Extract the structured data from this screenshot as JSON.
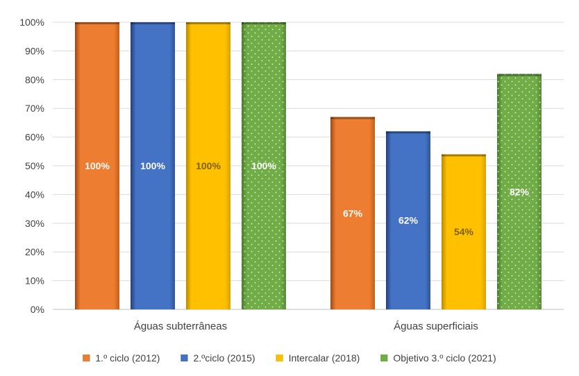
{
  "chart_data": {
    "type": "bar",
    "categories": [
      "Águas subterrâneas",
      "Águas superficiais"
    ],
    "series": [
      {
        "name": "1.º ciclo (2012)",
        "values": [
          100,
          67
        ],
        "color": "#ED7D31"
      },
      {
        "name": "2.ºciclo (2015)",
        "values": [
          100,
          62
        ],
        "color": "#4472C4"
      },
      {
        "name": "Intercalar (2018)",
        "values": [
          100,
          54
        ],
        "color": "#FFC000"
      },
      {
        "name": "Objetivo 3.º ciclo (2021)",
        "values": [
          100,
          82
        ],
        "color": "#70AD47"
      }
    ],
    "data_labels": [
      [
        "100%",
        "67%"
      ],
      [
        "100%",
        "62%"
      ],
      [
        "100%",
        "54%"
      ],
      [
        "100%",
        "82%"
      ]
    ],
    "y_ticks": [
      "0%",
      "10%",
      "20%",
      "30%",
      "40%",
      "50%",
      "60%",
      "70%",
      "80%",
      "90%",
      "100%"
    ],
    "ylim": [
      0,
      100
    ],
    "grid": true,
    "legend_position": "bottom"
  }
}
